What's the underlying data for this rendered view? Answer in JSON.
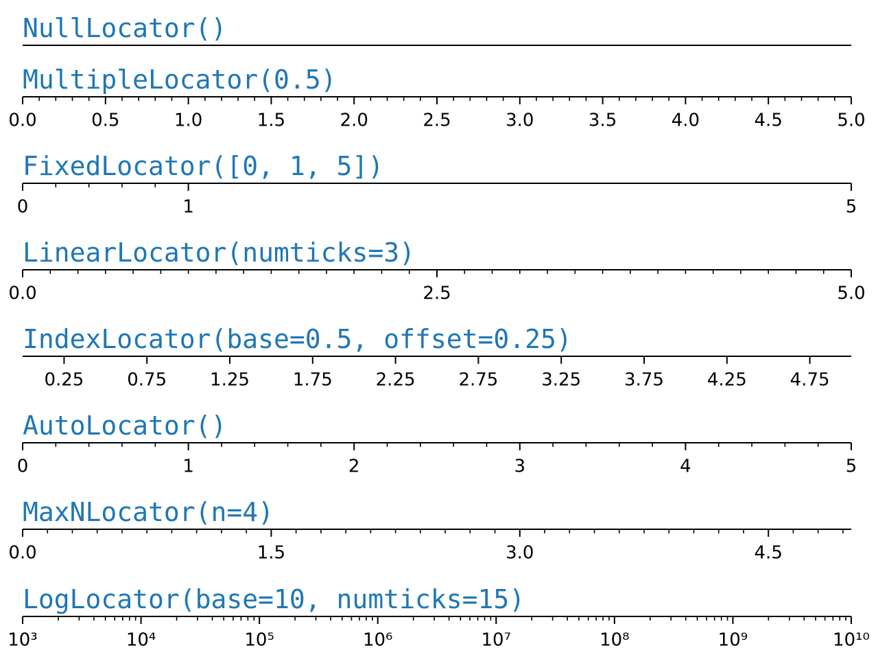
{
  "chart_data": [
    {
      "type": "axis",
      "title": "NullLocator()",
      "xlim": [
        0,
        5
      ],
      "xticks": [],
      "xminorticks": []
    },
    {
      "type": "axis",
      "title": "MultipleLocator(0.5)",
      "xlim": [
        0,
        5
      ],
      "xticks": [
        {
          "value": 0,
          "label": "0.0"
        },
        0.5,
        {
          "value": 1,
          "label": "1.0"
        },
        1.5,
        {
          "value": 2,
          "label": "2.0"
        },
        2.5,
        {
          "value": 3,
          "label": "3.0"
        },
        3.5,
        {
          "value": 4,
          "label": "4.0"
        },
        4.5,
        {
          "value": 5,
          "label": "5.0"
        }
      ],
      "xminorticks": [
        0.1,
        0.2,
        0.3,
        0.4,
        0.6,
        0.7,
        0.8,
        0.9,
        1.1,
        1.2,
        1.3,
        1.4,
        1.6,
        1.7,
        1.8,
        1.9,
        2.1,
        2.2,
        2.3,
        2.4,
        2.6,
        2.7,
        2.8,
        2.9,
        3.1,
        3.2,
        3.3,
        3.4,
        3.6,
        3.7,
        3.8,
        3.9,
        4.1,
        4.2,
        4.3,
        4.4,
        4.6,
        4.7,
        4.8,
        4.9
      ]
    },
    {
      "type": "axis",
      "title": "FixedLocator([0, 1, 5])",
      "xlim": [
        0,
        5
      ],
      "xticks": [
        0,
        1,
        5
      ],
      "xminorticks": [
        0.2,
        0.4,
        0.6,
        0.8
      ]
    },
    {
      "type": "axis",
      "title": "LinearLocator(numticks=3)",
      "xlim": [
        0,
        5
      ],
      "xticks": [
        {
          "value": 0,
          "label": "0.0"
        },
        2.5,
        {
          "value": 5,
          "label": "5.0"
        }
      ],
      "xminorticks": [
        0.1667,
        0.3333,
        0.5,
        0.6667,
        0.8333,
        1,
        1.1667,
        1.3333,
        1.5,
        1.6667,
        1.8333,
        2,
        2.1667,
        2.3333,
        2.6667,
        2.8333,
        3,
        3.1667,
        3.3333,
        3.5,
        3.6667,
        3.8333,
        4,
        4.1667,
        4.3333,
        4.5,
        4.6667,
        4.8333
      ]
    },
    {
      "type": "axis",
      "title": "IndexLocator(base=0.5, offset=0.25)",
      "xlim": [
        0,
        5
      ],
      "xticks": [
        0.25,
        0.75,
        1.25,
        1.75,
        2.25,
        2.75,
        3.25,
        3.75,
        4.25,
        4.75
      ],
      "xminorticks": []
    },
    {
      "type": "axis",
      "title": "AutoLocator()",
      "xlim": [
        0,
        5
      ],
      "xticks": [
        0,
        1,
        2,
        3,
        4,
        5
      ],
      "xminorticks": [
        0.2,
        0.4,
        0.6,
        0.8,
        1.2,
        1.4,
        1.6,
        1.8,
        2.2,
        2.4,
        2.6,
        2.8,
        3.2,
        3.4,
        3.6,
        3.8,
        4.2,
        4.4,
        4.6,
        4.8
      ]
    },
    {
      "type": "axis",
      "title": "MaxNLocator(n=4)",
      "xlim": [
        0,
        5
      ],
      "xticks": [
        {
          "value": 0,
          "label": "0.0"
        },
        1.5,
        {
          "value": 3,
          "label": "3.0"
        },
        4.5
      ],
      "xminorticks": [
        0.15,
        0.3,
        0.45,
        0.6,
        0.75,
        0.9,
        1.05,
        1.2,
        1.35,
        1.65,
        1.8,
        1.95,
        2.1,
        2.25,
        2.4,
        2.55,
        2.7,
        2.85,
        3.15,
        3.3,
        3.45,
        3.6,
        3.75,
        3.9,
        4.05,
        4.2,
        4.35,
        4.65,
        4.8,
        4.95
      ]
    },
    {
      "type": "axis",
      "title": "LogLocator(base=10, numticks=15)",
      "xlim": [
        1000,
        10000000000
      ],
      "log": true,
      "xticks": [
        {
          "value": 1000,
          "label": "10³"
        },
        {
          "value": 10000,
          "label": "10⁴"
        },
        {
          "value": 100000,
          "label": "10⁵"
        },
        {
          "value": 1000000,
          "label": "10⁶"
        },
        {
          "value": 10000000,
          "label": "10⁷"
        },
        {
          "value": 100000000,
          "label": "10⁸"
        },
        {
          "value": 1000000000,
          "label": "10⁹"
        },
        {
          "value": 10000000000,
          "label": "10¹⁰"
        }
      ],
      "xminorticks": [
        2000.0,
        3000.0,
        4000.0,
        5000.0,
        6000.0,
        7000.0,
        8000.0,
        9000.0,
        20000.0,
        30000.0,
        40000.0,
        50000.0,
        60000.0,
        70000.0,
        80000.0,
        90000.0,
        200000.0,
        300000.0,
        400000.0,
        500000.0,
        600000.0,
        700000.0,
        800000.0,
        900000.0,
        2000000.0,
        3000000.0,
        4000000.0,
        5000000.0,
        6000000.0,
        7000000.0,
        8000000.0,
        9000000.0,
        20000000.0,
        30000000.0,
        40000000.0,
        50000000.0,
        60000000.0,
        70000000.0,
        80000000.0,
        90000000.0,
        200000000.0,
        300000000.0,
        400000000.0,
        500000000.0,
        600000000.0,
        700000000.0,
        800000000.0,
        900000000.0,
        2000000000.0,
        3000000000.0,
        4000000000.0,
        5000000000.0,
        6000000000.0,
        7000000000.0,
        8000000000.0,
        9000000000.0
      ]
    }
  ]
}
